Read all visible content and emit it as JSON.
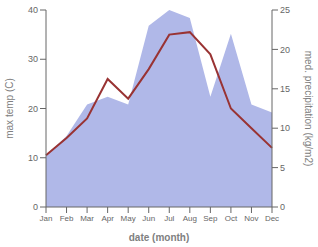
{
  "chart_data": {
    "type": "line",
    "categories": [
      "Jan",
      "Feb",
      "Mar",
      "Apr",
      "May",
      "Jun",
      "Jul",
      "Aug",
      "Sep",
      "Oct",
      "Nov",
      "Dec"
    ],
    "xlabel": "date (month)",
    "ylabel": "max temp (C)",
    "y2label": "med. precipitation (kg/m2)",
    "ylim": [
      0,
      40
    ],
    "yticks": [
      0,
      10,
      20,
      30,
      40
    ],
    "y2lim": [
      0,
      25
    ],
    "y2ticks": [
      0,
      5,
      10,
      15,
      20,
      25
    ],
    "grid": false,
    "series": [
      {
        "type": "area",
        "axis": "y2",
        "color": "#b0b8e8",
        "values": [
          6.5,
          9.0,
          13.0,
          14.0,
          13.0,
          23.0,
          25.0,
          24.0,
          14.0,
          22.0,
          13.0,
          12.0
        ]
      },
      {
        "type": "line",
        "color": "#993333",
        "values": [
          10.5,
          14.0,
          18.0,
          26.0,
          22.0,
          28.0,
          35.0,
          35.5,
          31.0,
          20.0,
          16.0,
          12.0
        ]
      }
    ]
  }
}
